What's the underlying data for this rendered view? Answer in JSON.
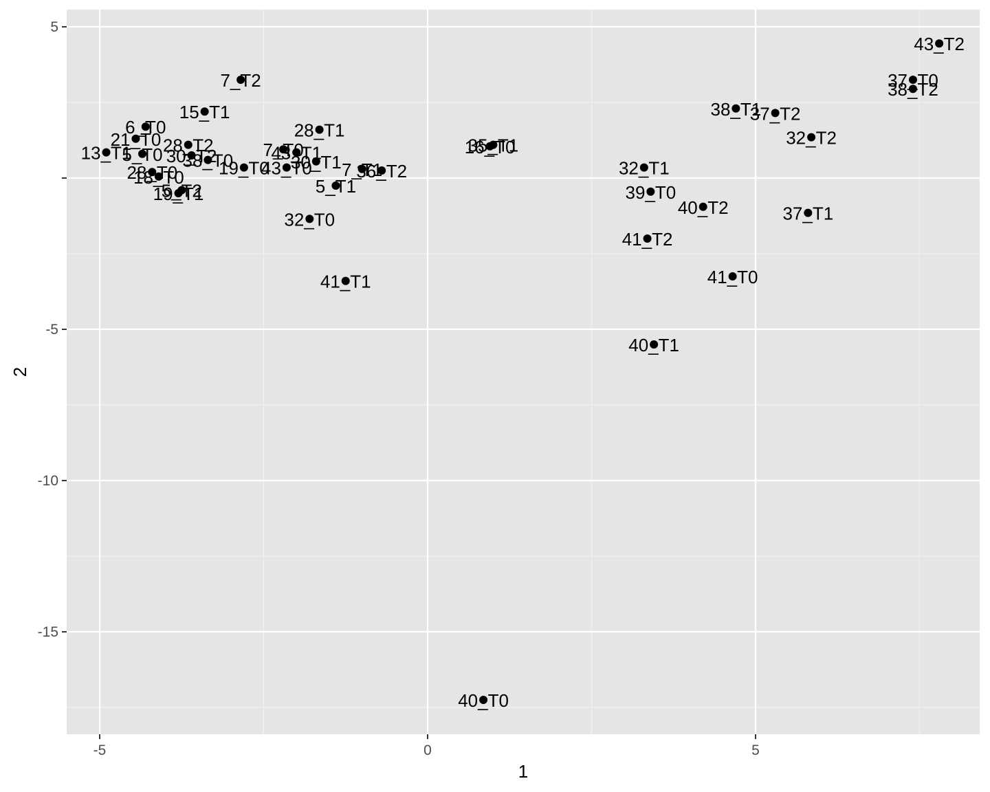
{
  "chart_data": {
    "type": "scatter",
    "title": "",
    "xlabel": "1",
    "ylabel": "2",
    "xlim": [
      -5.5,
      8.4
    ],
    "ylim": [
      -18.2,
      5.5
    ],
    "x_ticks": [
      -5,
      0,
      5
    ],
    "y_ticks": [
      5,
      -5,
      -10,
      -15
    ],
    "x_tick_labels": [
      "-5",
      "0",
      "5"
    ],
    "y_tick_labels": [
      "5",
      "-5",
      "-10",
      "-15"
    ],
    "grid": true,
    "legend": "none",
    "colors": {
      "panel": "#e5e5e5",
      "grid": "#ffffff",
      "point": "#000000"
    },
    "points": [
      {
        "label": "43_T2",
        "x": 7.8,
        "y": 4.45
      },
      {
        "label": "37_T0",
        "x": 7.4,
        "y": 3.25
      },
      {
        "label": "38_T2",
        "x": 7.4,
        "y": 2.95
      },
      {
        "label": "7_T2",
        "x": -2.85,
        "y": 3.25
      },
      {
        "label": "15_T1",
        "x": -3.4,
        "y": 2.2
      },
      {
        "label": "38_T1",
        "x": 4.7,
        "y": 2.3
      },
      {
        "label": "37_T2",
        "x": 5.3,
        "y": 2.15
      },
      {
        "label": "32_T2",
        "x": 5.85,
        "y": 1.35
      },
      {
        "label": "6_T0",
        "x": -4.3,
        "y": 1.7
      },
      {
        "label": "28_T1",
        "x": -1.65,
        "y": 1.6
      },
      {
        "label": "21_T0",
        "x": -4.45,
        "y": 1.3
      },
      {
        "label": "28_T2",
        "x": -3.65,
        "y": 1.1
      },
      {
        "label": "35_T1",
        "x": 1.0,
        "y": 1.1
      },
      {
        "label": "16_T0",
        "x": 0.95,
        "y": 1.05
      },
      {
        "label": "7_T0",
        "x": -2.2,
        "y": 0.95
      },
      {
        "label": "43_T1",
        "x": -2.0,
        "y": 0.85
      },
      {
        "label": "13_T1",
        "x": -4.9,
        "y": 0.85
      },
      {
        "label": "5_T0",
        "x": -4.35,
        "y": 0.8
      },
      {
        "label": "30_T2",
        "x": -3.6,
        "y": 0.75
      },
      {
        "label": "38_T0",
        "x": -3.35,
        "y": 0.6
      },
      {
        "label": "30_T1",
        "x": -1.7,
        "y": 0.55
      },
      {
        "label": "19_T0",
        "x": -2.8,
        "y": 0.35
      },
      {
        "label": "43_T0",
        "x": -2.15,
        "y": 0.35
      },
      {
        "label": "32_T1",
        "x": 3.3,
        "y": 0.35
      },
      {
        "label": "7_T1",
        "x": -1.0,
        "y": 0.3
      },
      {
        "label": "36_T2",
        "x": -0.7,
        "y": 0.25
      },
      {
        "label": "28_T0",
        "x": -4.2,
        "y": 0.2
      },
      {
        "label": "18_T0",
        "x": -4.1,
        "y": 0.05
      },
      {
        "label": "5_T1",
        "x": -1.4,
        "y": -0.25
      },
      {
        "label": "39_T0",
        "x": 3.4,
        "y": -0.45
      },
      {
        "label": "5_T2",
        "x": -3.75,
        "y": -0.4
      },
      {
        "label": "19_T1",
        "x": -3.8,
        "y": -0.5
      },
      {
        "label": "40_T2",
        "x": 4.2,
        "y": -0.95
      },
      {
        "label": "37_T1",
        "x": 5.8,
        "y": -1.15
      },
      {
        "label": "32_T0",
        "x": -1.8,
        "y": -1.35
      },
      {
        "label": "41_T2",
        "x": 3.35,
        "y": -2.0
      },
      {
        "label": "41_T0",
        "x": 4.65,
        "y": -3.25
      },
      {
        "label": "41_T1",
        "x": -1.25,
        "y": -3.4
      },
      {
        "label": "40_T1",
        "x": 3.45,
        "y": -5.5
      },
      {
        "label": "40_T0",
        "x": 0.85,
        "y": -17.25
      }
    ]
  }
}
